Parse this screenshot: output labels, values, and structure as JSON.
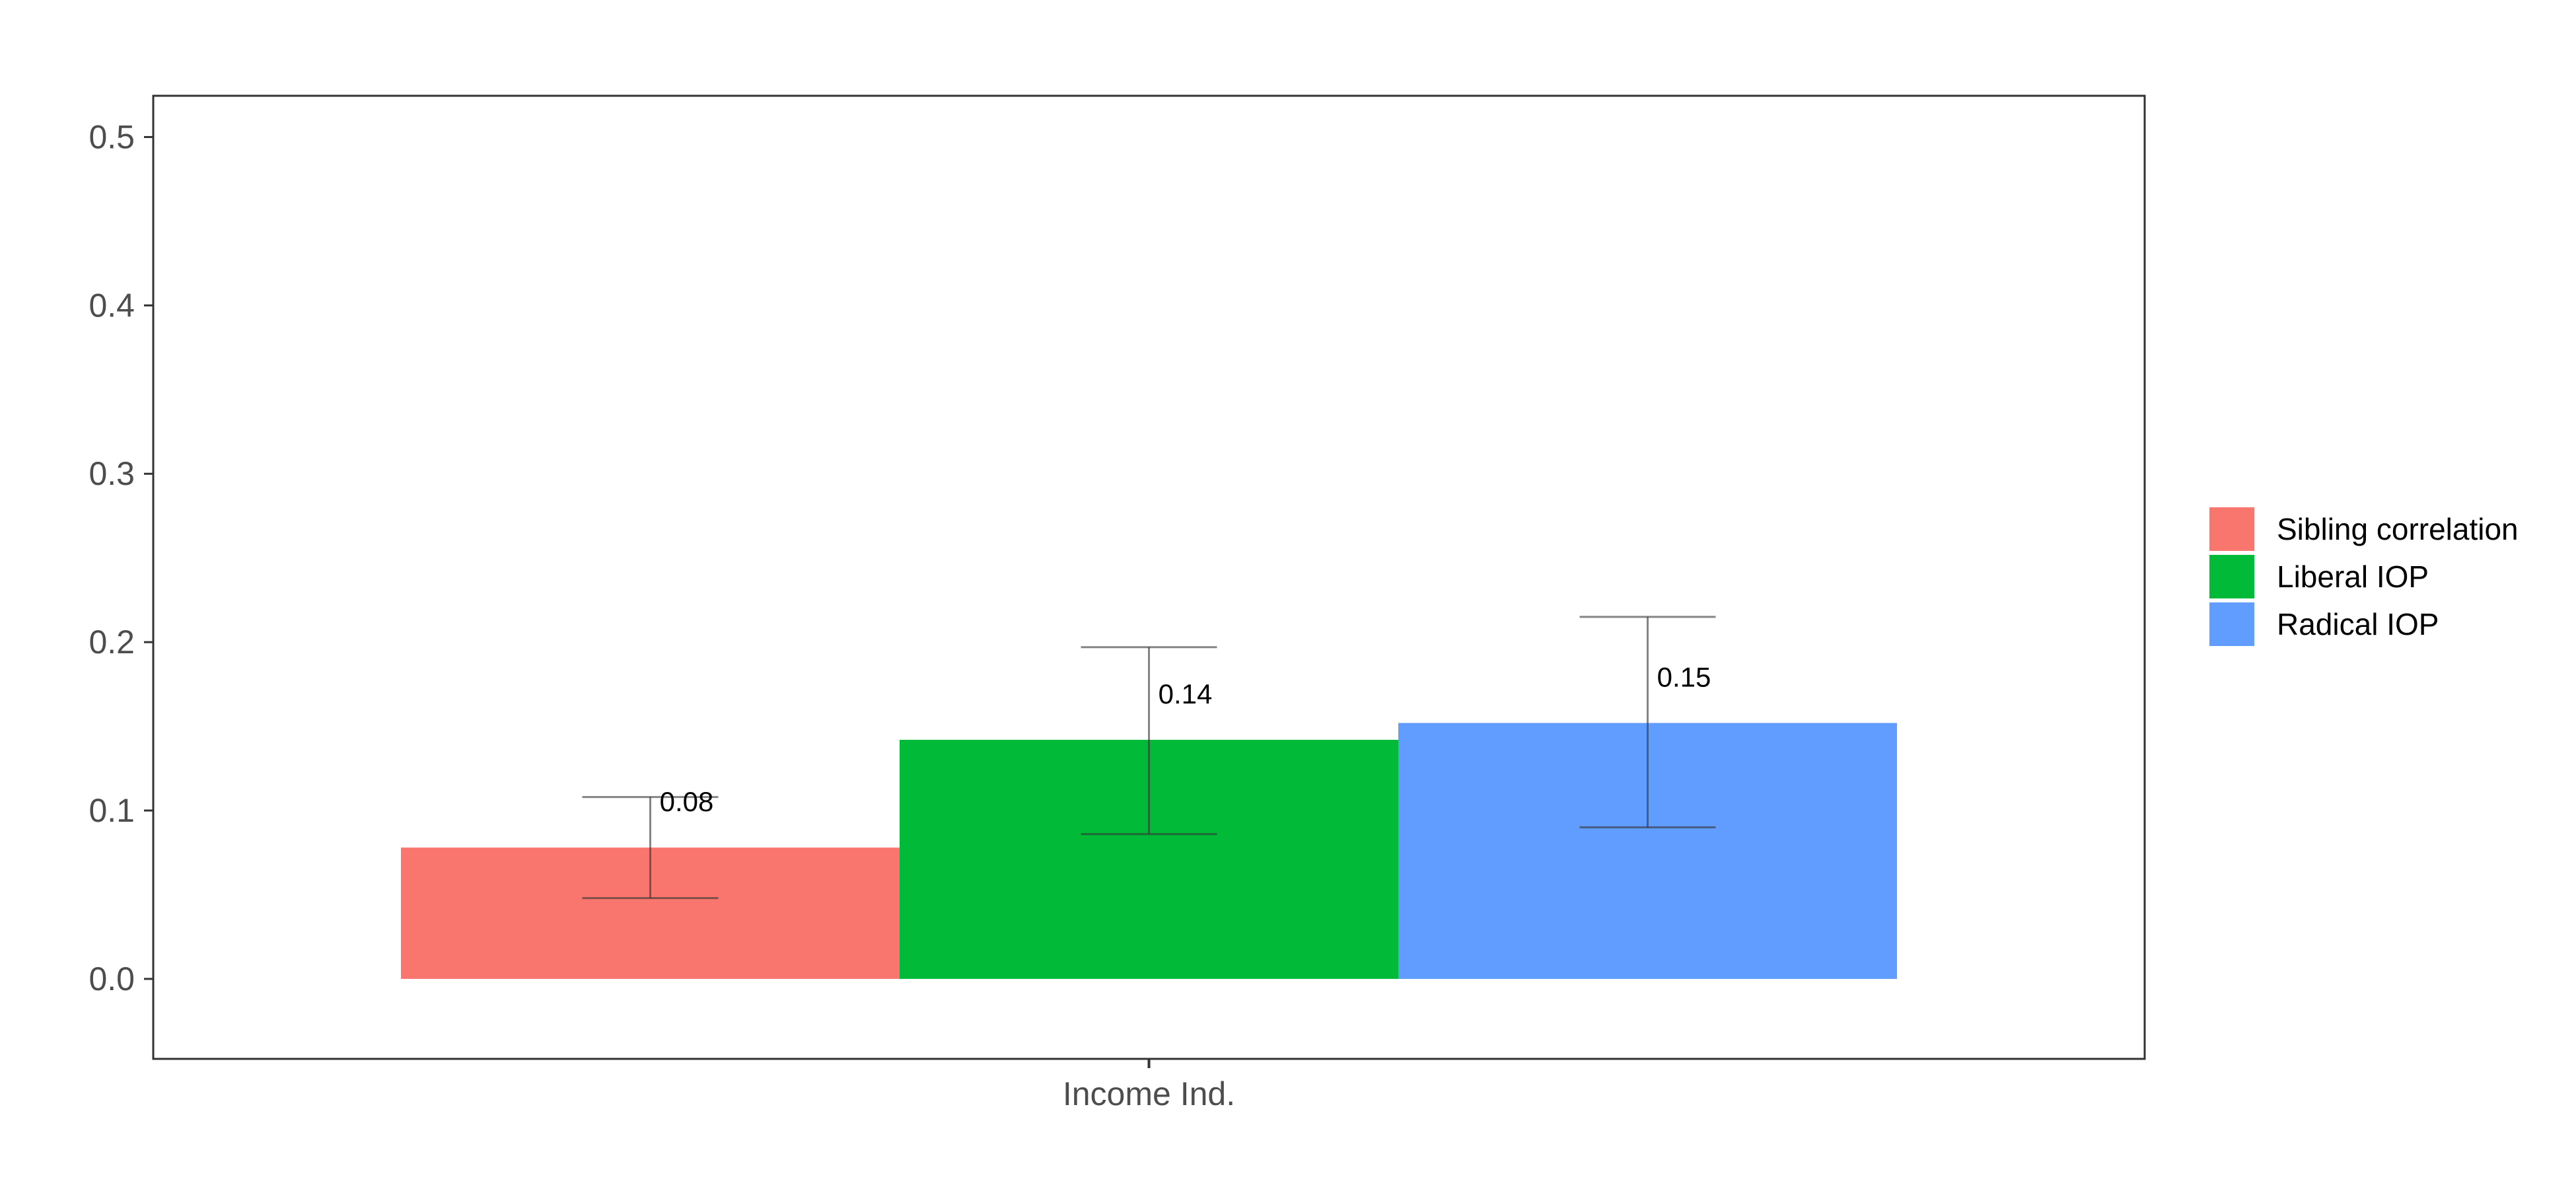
{
  "chart_data": {
    "type": "bar",
    "title": "",
    "xlabel": "",
    "ylabel": "",
    "categories": [
      "Income Ind."
    ],
    "ylim": [
      -0.0475,
      0.5245
    ],
    "yticks": [
      0.0,
      0.1,
      0.2,
      0.3,
      0.4,
      0.5
    ],
    "ytick_labels": [
      "0.0",
      "0.1",
      "0.2",
      "0.3",
      "0.4",
      "0.5"
    ],
    "grid": false,
    "legend_position": "right",
    "series": [
      {
        "name": "Sibling correlation",
        "values": [
          0.078
        ],
        "error_low": [
          0.048
        ],
        "error_high": [
          0.108
        ],
        "label": "0.08",
        "color": "#F8766D"
      },
      {
        "name": "Liberal IOP",
        "values": [
          0.142
        ],
        "error_low": [
          0.086
        ],
        "error_high": [
          0.197
        ],
        "label": "0.14",
        "color": "#00BA38"
      },
      {
        "name": "Radical IOP",
        "values": [
          0.152
        ],
        "error_low": [
          0.09
        ],
        "error_high": [
          0.215
        ],
        "label": "0.15",
        "color": "#619CFF"
      }
    ]
  }
}
